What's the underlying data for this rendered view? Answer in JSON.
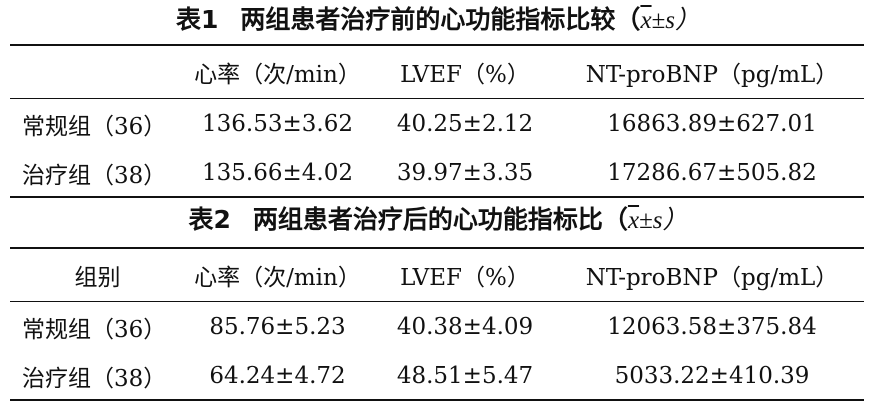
{
  "table1": {
    "caption_num": "表1",
    "caption_text": "两组患者治疗前的心功能指标比较",
    "caption_stat_open": "（",
    "caption_stat_x": "x",
    "caption_stat_rest": "±s）",
    "headers": [
      "",
      "心率（次/min）",
      "LVEF（%）",
      "NT-proBNP（pg/mL）"
    ],
    "rows": [
      [
        "常规组（36）",
        "136.53±3.62",
        "40.25±2.12",
        "16863.89±627.01"
      ],
      [
        "治疗组（38）",
        "135.66±4.02",
        "39.97±3.35",
        "17286.67±505.82"
      ]
    ]
  },
  "table2": {
    "caption_num": "表2",
    "caption_text": "两组患者治疗后的心功能指标比",
    "caption_stat_open": "（",
    "caption_stat_x": "x",
    "caption_stat_rest": "±s）",
    "headers": [
      "组别",
      "心率（次/min）",
      "LVEF（%）",
      "NT-proBNP（pg/mL）"
    ],
    "rows": [
      [
        "常规组（36）",
        "85.76±5.23",
        "40.38±4.09",
        "12063.58±375.84"
      ],
      [
        "治疗组（38）",
        "64.24±4.72",
        "48.51±5.47",
        "5033.22±410.39"
      ]
    ]
  }
}
